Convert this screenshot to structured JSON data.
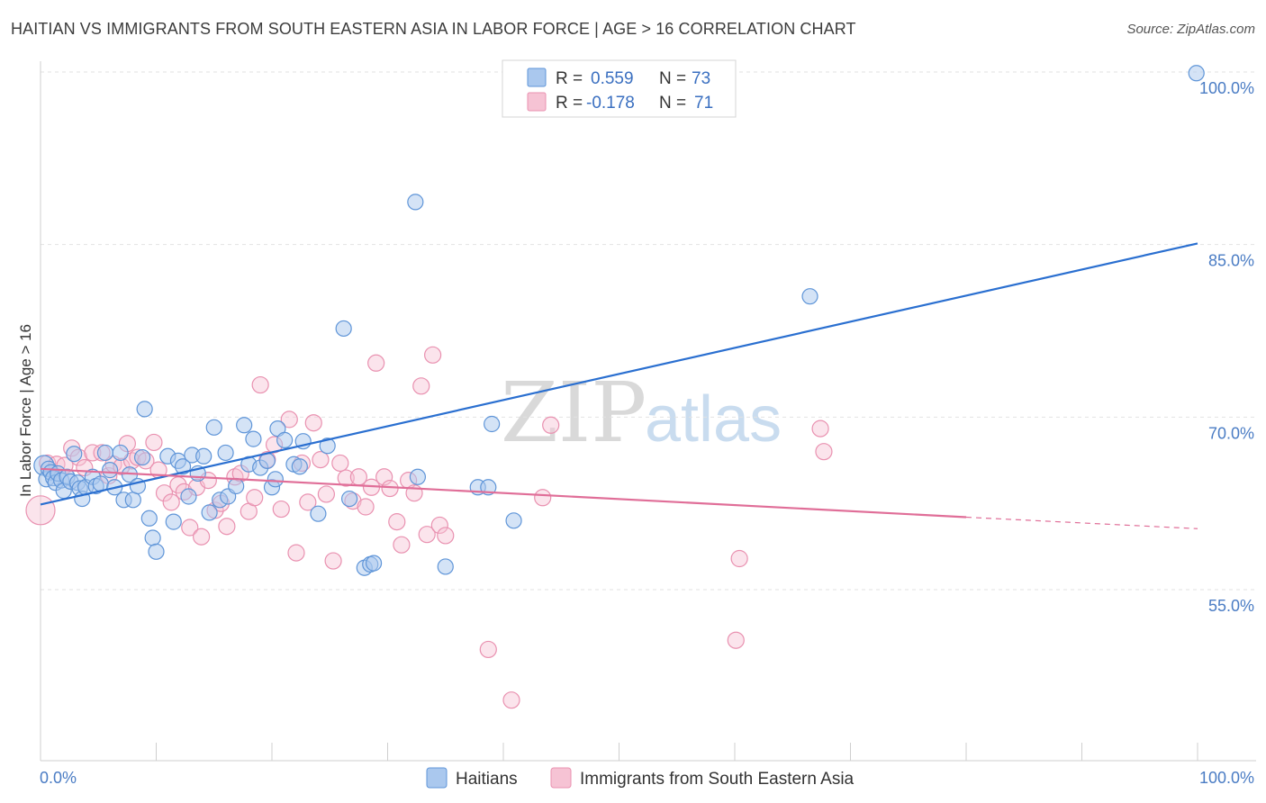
{
  "title": "HAITIAN VS IMMIGRANTS FROM SOUTH EASTERN ASIA IN LABOR FORCE | AGE > 16 CORRELATION CHART",
  "source": "Source: ZipAtlas.com",
  "watermark": {
    "part1": "ZIP",
    "part2": "atlas"
  },
  "colors": {
    "blue_fill": "#aac8ee",
    "blue_stroke": "#5f95d8",
    "blue_line": "#2a6fd0",
    "pink_fill": "#f6c3d4",
    "pink_stroke": "#e991b0",
    "pink_line": "#e06e98",
    "grid": "#e2e2e2",
    "tick_text": "#4a7cc4"
  },
  "legend": {
    "rows": [
      {
        "r_label": "R =",
        "r_value": "0.559",
        "n_label": "N =",
        "n_value": "73"
      },
      {
        "r_label": "R =",
        "r_value": "-0.178",
        "n_label": "N =",
        "n_value": "71"
      }
    ]
  },
  "chart_data": {
    "type": "scatter",
    "title": "HAITIAN VS IMMIGRANTS FROM SOUTH EASTERN ASIA IN LABOR FORCE | AGE > 16 CORRELATION CHART",
    "xlabel": "",
    "ylabel": "In Labor Force | Age > 16",
    "xlim": [
      0,
      100
    ],
    "ylim": [
      38,
      100
    ],
    "x_tick_labels": [
      "0.0%",
      "100.0%"
    ],
    "y_ticks": [
      55,
      70,
      85,
      100
    ],
    "y_tick_labels": [
      "55.0%",
      "70.0%",
      "85.0%",
      "100.0%"
    ],
    "series": [
      {
        "name": "Haitians",
        "r": 0.559,
        "n": 73,
        "trend": {
          "x0": 0,
          "y0": 62.4,
          "x1": 100,
          "y1": 85.1
        },
        "points": [
          [
            0.3,
            65.8
          ],
          [
            0.5,
            64.6
          ],
          [
            0.7,
            65.5
          ],
          [
            0.9,
            65.2
          ],
          [
            1.1,
            64.7
          ],
          [
            1.3,
            64.3
          ],
          [
            1.5,
            65.1
          ],
          [
            1.8,
            64.5
          ],
          [
            2.0,
            63.6
          ],
          [
            2.3,
            64.8
          ],
          [
            2.6,
            64.4
          ],
          [
            2.9,
            66.8
          ],
          [
            3.2,
            64.3
          ],
          [
            3.4,
            63.8
          ],
          [
            3.6,
            62.9
          ],
          [
            3.9,
            63.9
          ],
          [
            4.5,
            64.8
          ],
          [
            4.8,
            64.0
          ],
          [
            5.2,
            64.2
          ],
          [
            5.6,
            66.9
          ],
          [
            6.0,
            65.4
          ],
          [
            6.4,
            63.9
          ],
          [
            6.9,
            66.9
          ],
          [
            7.2,
            62.8
          ],
          [
            7.7,
            65.0
          ],
          [
            8.0,
            62.8
          ],
          [
            8.4,
            64.0
          ],
          [
            8.8,
            66.5
          ],
          [
            9.0,
            70.7
          ],
          [
            9.4,
            61.2
          ],
          [
            9.7,
            59.5
          ],
          [
            10.0,
            58.3
          ],
          [
            11.0,
            66.6
          ],
          [
            11.5,
            60.9
          ],
          [
            11.9,
            66.2
          ],
          [
            12.3,
            65.7
          ],
          [
            12.8,
            63.1
          ],
          [
            13.1,
            66.7
          ],
          [
            13.6,
            65.1
          ],
          [
            14.1,
            66.6
          ],
          [
            14.6,
            61.7
          ],
          [
            15.0,
            69.1
          ],
          [
            15.5,
            62.8
          ],
          [
            16.0,
            66.9
          ],
          [
            16.2,
            63.1
          ],
          [
            16.9,
            64.0
          ],
          [
            17.6,
            69.3
          ],
          [
            18.0,
            65.9
          ],
          [
            18.4,
            68.1
          ],
          [
            19.0,
            65.6
          ],
          [
            19.6,
            66.2
          ],
          [
            20.0,
            63.9
          ],
          [
            20.3,
            64.6
          ],
          [
            20.5,
            69.0
          ],
          [
            21.1,
            68.0
          ],
          [
            21.9,
            65.9
          ],
          [
            22.4,
            65.7
          ],
          [
            22.7,
            67.9
          ],
          [
            24.0,
            61.6
          ],
          [
            24.8,
            67.5
          ],
          [
            26.2,
            77.7
          ],
          [
            26.7,
            62.9
          ],
          [
            28.0,
            56.9
          ],
          [
            28.5,
            57.2
          ],
          [
            28.8,
            57.3
          ],
          [
            32.4,
            88.7
          ],
          [
            32.6,
            64.8
          ],
          [
            35.0,
            57.0
          ],
          [
            37.8,
            63.9
          ],
          [
            38.7,
            63.9
          ],
          [
            39.0,
            69.4
          ],
          [
            40.9,
            61.0
          ],
          [
            66.5,
            80.5
          ],
          [
            99.9,
            99.9
          ]
        ]
      },
      {
        "name": "Immigrants from South Eastern Asia",
        "r": -0.178,
        "n": 71,
        "trend": {
          "x0": 0,
          "y0": 65.5,
          "x1": 80,
          "y1": 61.3,
          "dash_to_x": 100,
          "dash_to_y": 60.3
        },
        "points": [
          [
            0.0,
            61.9
          ],
          [
            0.6,
            66.0
          ],
          [
            1.4,
            65.9
          ],
          [
            2.1,
            65.8
          ],
          [
            2.7,
            67.3
          ],
          [
            3.3,
            66.5
          ],
          [
            3.8,
            65.6
          ],
          [
            4.5,
            66.9
          ],
          [
            5.3,
            66.9
          ],
          [
            5.9,
            64.9
          ],
          [
            6.3,
            65.9
          ],
          [
            7.0,
            65.7
          ],
          [
            7.5,
            67.7
          ],
          [
            7.9,
            66.2
          ],
          [
            8.4,
            66.5
          ],
          [
            9.1,
            66.2
          ],
          [
            9.8,
            67.8
          ],
          [
            10.2,
            65.4
          ],
          [
            10.7,
            63.4
          ],
          [
            11.3,
            62.6
          ],
          [
            11.9,
            64.1
          ],
          [
            12.4,
            63.5
          ],
          [
            12.9,
            60.4
          ],
          [
            13.5,
            63.9
          ],
          [
            13.9,
            59.6
          ],
          [
            14.5,
            64.5
          ],
          [
            15.1,
            61.9
          ],
          [
            15.6,
            62.5
          ],
          [
            16.1,
            60.5
          ],
          [
            16.8,
            64.8
          ],
          [
            17.3,
            65.1
          ],
          [
            18.0,
            61.8
          ],
          [
            18.5,
            63.0
          ],
          [
            19.0,
            72.8
          ],
          [
            19.6,
            66.3
          ],
          [
            20.2,
            67.6
          ],
          [
            20.8,
            62.0
          ],
          [
            21.5,
            69.8
          ],
          [
            22.1,
            58.2
          ],
          [
            22.6,
            66.0
          ],
          [
            23.1,
            62.6
          ],
          [
            23.6,
            69.5
          ],
          [
            24.2,
            66.3
          ],
          [
            24.7,
            63.3
          ],
          [
            25.3,
            57.5
          ],
          [
            25.9,
            66.0
          ],
          [
            26.4,
            64.7
          ],
          [
            27.0,
            62.7
          ],
          [
            27.5,
            64.8
          ],
          [
            28.1,
            62.2
          ],
          [
            28.6,
            63.9
          ],
          [
            29.0,
            74.7
          ],
          [
            29.7,
            64.8
          ],
          [
            30.2,
            63.8
          ],
          [
            30.8,
            60.9
          ],
          [
            31.2,
            58.9
          ],
          [
            31.8,
            64.5
          ],
          [
            32.3,
            63.4
          ],
          [
            32.9,
            72.7
          ],
          [
            33.4,
            59.8
          ],
          [
            33.9,
            75.4
          ],
          [
            34.5,
            60.6
          ],
          [
            35.0,
            59.7
          ],
          [
            38.7,
            49.8
          ],
          [
            40.7,
            45.4
          ],
          [
            43.4,
            63.0
          ],
          [
            44.1,
            69.3
          ],
          [
            60.1,
            50.6
          ],
          [
            60.4,
            57.7
          ],
          [
            67.4,
            69.0
          ],
          [
            67.7,
            67.0
          ]
        ]
      }
    ]
  }
}
